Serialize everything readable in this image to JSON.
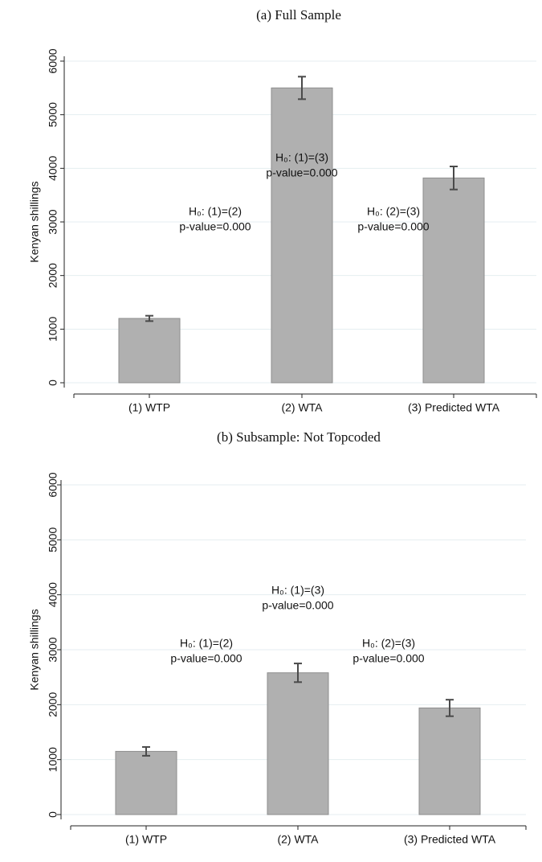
{
  "chart_data": [
    {
      "type": "bar",
      "title": "(a) Full Sample",
      "y_label": "Kenyan shillings",
      "categories": [
        "(1) WTP",
        "(2) WTA",
        "(3) Predicted WTA"
      ],
      "values": [
        1200,
        5500,
        3820
      ],
      "errors": [
        50,
        210,
        215
      ],
      "color": "#b0b0b0",
      "ylim": [
        0,
        6000
      ],
      "yticks": [
        0,
        1000,
        2000,
        3000,
        4000,
        5000,
        6000
      ],
      "grid": true,
      "annotations": [
        [
          "H₀: (1)=(2)",
          "p-value=0.000"
        ],
        [
          "H₀: (1)=(3)",
          "p-value=0.000"
        ],
        [
          "H₀: (2)=(3)",
          "p-value=0.000"
        ]
      ]
    },
    {
      "type": "bar",
      "title": "(b) Subsample: Not Topcoded",
      "y_label": "Kenyan shillings",
      "categories": [
        "(1) WTP",
        "(2) WTA",
        "(3) Predicted WTA"
      ],
      "values": [
        1150,
        2580,
        1940
      ],
      "errors": [
        80,
        170,
        150
      ],
      "color": "#b0b0b0",
      "ylim": [
        0,
        6000
      ],
      "yticks": [
        0,
        1000,
        2000,
        3000,
        4000,
        5000,
        6000
      ],
      "grid": true,
      "annotations": [
        [
          "H₀: (1)=(2)",
          "p-value=0.000"
        ],
        [
          "H₀: (1)=(3)",
          "p-value=0.000"
        ],
        [
          "H₀: (2)=(3)",
          "p-value=0.000"
        ]
      ]
    }
  ]
}
